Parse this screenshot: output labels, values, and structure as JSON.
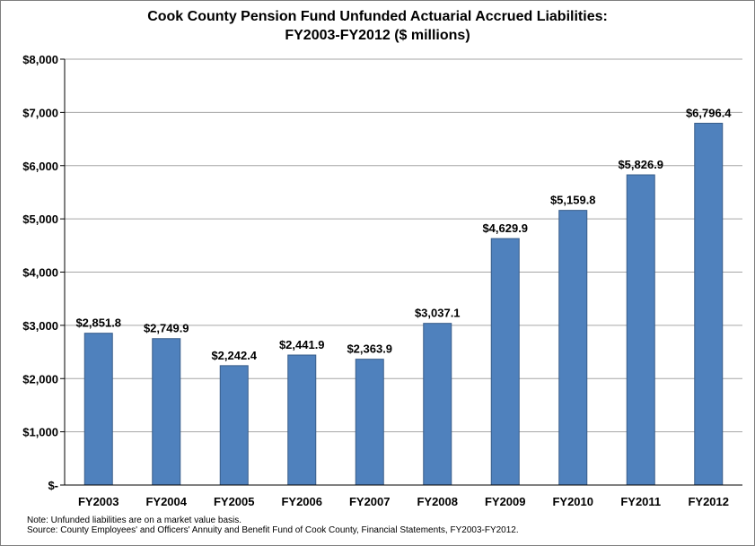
{
  "chart_data": {
    "type": "bar",
    "title": [
      "Cook County Pension Fund Unfunded Actuarial Accrued Liabilities:",
      "FY2003-FY2012 ($ millions)"
    ],
    "categories": [
      "FY2003",
      "FY2004",
      "FY2005",
      "FY2006",
      "FY2007",
      "FY2008",
      "FY2009",
      "FY2010",
      "FY2011",
      "FY2012"
    ],
    "values": [
      2851.8,
      2749.9,
      2242.4,
      2441.9,
      2363.9,
      3037.1,
      4629.9,
      5159.8,
      5826.9,
      6796.4
    ],
    "data_labels": [
      "$2,851.8",
      "$2,749.9",
      "$2,242.4",
      "$2,441.9",
      "$2,363.9",
      "$3,037.1",
      "$4,629.9",
      "$5,159.8",
      "$5,826.9",
      "$6,796.4"
    ],
    "ylim": [
      0,
      8000
    ],
    "yticks": [
      0,
      1000,
      2000,
      3000,
      4000,
      5000,
      6000,
      7000,
      8000
    ],
    "ytick_labels": [
      "$-",
      "$1,000",
      "$2,000",
      "$3,000",
      "$4,000",
      "$5,000",
      "$6,000",
      "$7,000",
      "$8,000"
    ],
    "xlabel": "",
    "ylabel": "",
    "grid": true,
    "bar_color": "#4f81bd",
    "bar_edge_color": "#385d8a",
    "gridline_color": "#a6a6a6"
  },
  "notes": [
    "Note: Unfunded liabilities are on a market value basis.",
    "Source: County Employees' and Officers' Annuity and Benefit Fund of Cook County, Financial Statements, FY2003-FY2012."
  ]
}
